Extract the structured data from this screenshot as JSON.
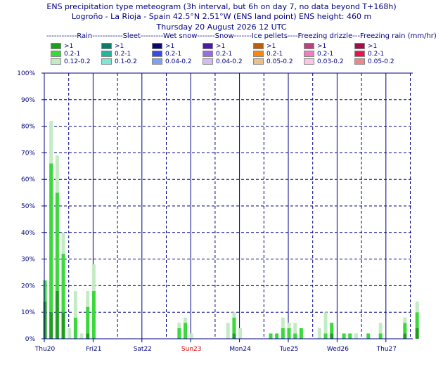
{
  "header": {
    "title_line1": "ENS precipitation type meteogram (3h interval, but 6h on day 7, no data beyond T+168h)",
    "title_line2": "Logroño - La Rioja - Spain 42.5°N 2.51°W (ENS land point) ENS height: 460 m",
    "title_line3": "Thursday 20 August 2026 12 UTC",
    "legend_header": "------------Rain------------Sleet---------Wet snow-------Snow-------Ice pellets----Freezing drizzle---Freezing rain (mm/hr)"
  },
  "legend": [
    [
      {
        "label": ">1",
        "color": "#1e9e1e"
      },
      {
        "label": "0.2-1",
        "color": "#3ad83a"
      },
      {
        "label": "0.12-0.2",
        "color": "#c4ecc4"
      }
    ],
    [
      {
        "label": ">1",
        "color": "#0e7a6a"
      },
      {
        "label": "0.2-1",
        "color": "#22b79c"
      },
      {
        "label": "0.1-0.2",
        "color": "#7fe6d2"
      }
    ],
    [
      {
        "label": ">1",
        "color": "#0a0a6e"
      },
      {
        "label": "0.2-1",
        "color": "#3a4ae6"
      },
      {
        "label": "0.04-0.2",
        "color": "#7fa2ee"
      }
    ],
    [
      {
        "label": ">1",
        "color": "#4a1aa2"
      },
      {
        "label": "0.2-1",
        "color": "#9a6ae6"
      },
      {
        "label": "0.04-0.2",
        "color": "#d2bcee"
      }
    ],
    [
      {
        "label": ">1",
        "color": "#b85e0c"
      },
      {
        "label": "0.2-1",
        "color": "#f8880e"
      },
      {
        "label": "0.05-0.2",
        "color": "#e6c08e"
      }
    ],
    [
      {
        "label": ">1",
        "color": "#b8447e"
      },
      {
        "label": "0.2-1",
        "color": "#f07ec0"
      },
      {
        "label": "0.03-0.2",
        "color": "#f8c8e2"
      }
    ],
    [
      {
        "label": ">1",
        "color": "#a2104a"
      },
      {
        "label": "0.2-1",
        "color": "#f0104e"
      },
      {
        "label": "0.05-0.2",
        "color": "#ee8888"
      }
    ]
  ],
  "chart_data": {
    "type": "bar",
    "stacked": true,
    "ylim": [
      0,
      100
    ],
    "y_tick_labels": [
      "0%",
      "10%",
      "20%",
      "30%",
      "40%",
      "50%",
      "60%",
      "70%",
      "80%",
      "90%",
      "100%"
    ],
    "x_tick_labels": [
      {
        "label": "Thu20",
        "color": "#000080"
      },
      {
        "label": "Fri21",
        "color": "#000080"
      },
      {
        "label": "Sat22",
        "color": "#000080"
      },
      {
        "label": "Sun23",
        "color": "#e00000"
      },
      {
        "label": "Mon24",
        "color": "#000080"
      },
      {
        "label": "Tue25",
        "color": "#000080"
      },
      {
        "label": "Wed26",
        "color": "#000080"
      },
      {
        "label": "Thu27",
        "color": "#000080"
      }
    ],
    "grid": true,
    "series_colors": [
      "#1e9e1e",
      "#3ad83a",
      "#c4ecc4"
    ],
    "bars": [
      {
        "day": 0.0,
        "values": [
          14,
          8,
          0
        ]
      },
      {
        "day": 0.125,
        "values": [
          10,
          56,
          16
        ]
      },
      {
        "day": 0.25,
        "values": [
          18,
          37,
          14
        ]
      },
      {
        "day": 0.375,
        "values": [
          10,
          22,
          8
        ]
      },
      {
        "day": 0.5,
        "values": [
          0,
          0,
          4
        ]
      },
      {
        "day": 0.625,
        "values": [
          0,
          8,
          10
        ]
      },
      {
        "day": 0.75,
        "values": [
          0,
          0,
          2
        ]
      },
      {
        "day": 0.875,
        "values": [
          2,
          10,
          6
        ]
      },
      {
        "day": 1.0,
        "values": [
          0,
          18,
          10
        ]
      },
      {
        "day": 2.75,
        "values": [
          0,
          4,
          2
        ]
      },
      {
        "day": 2.875,
        "values": [
          0,
          6,
          2
        ]
      },
      {
        "day": 3.0,
        "values": [
          0,
          0,
          2
        ]
      },
      {
        "day": 3.75,
        "values": [
          0,
          0,
          6
        ]
      },
      {
        "day": 3.875,
        "values": [
          2,
          6,
          2
        ]
      },
      {
        "day": 4.0,
        "values": [
          0,
          0,
          4
        ]
      },
      {
        "day": 4.625,
        "values": [
          0,
          2,
          0
        ]
      },
      {
        "day": 4.75,
        "values": [
          0,
          2,
          0
        ]
      },
      {
        "day": 4.875,
        "values": [
          0,
          4,
          4
        ]
      },
      {
        "day": 5.0,
        "values": [
          0,
          4,
          2
        ]
      },
      {
        "day": 5.125,
        "values": [
          0,
          2,
          4
        ]
      },
      {
        "day": 5.25,
        "values": [
          0,
          4,
          0
        ]
      },
      {
        "day": 5.625,
        "values": [
          0,
          0,
          4
        ]
      },
      {
        "day": 5.75,
        "values": [
          0,
          2,
          8
        ]
      },
      {
        "day": 5.875,
        "values": [
          2,
          4,
          0
        ]
      },
      {
        "day": 6.125,
        "values": [
          0,
          2,
          0
        ]
      },
      {
        "day": 6.25,
        "values": [
          0,
          2,
          0
        ]
      },
      {
        "day": 6.375,
        "values": [
          0,
          0,
          2
        ]
      },
      {
        "day": 6.625,
        "values": [
          0,
          2,
          0
        ]
      },
      {
        "day": 6.875,
        "values": [
          0,
          2,
          4
        ]
      },
      {
        "day": 7.375,
        "values": [
          2,
          4,
          2
        ]
      },
      {
        "day": 7.625,
        "values": [
          4,
          6,
          4
        ]
      }
    ]
  }
}
